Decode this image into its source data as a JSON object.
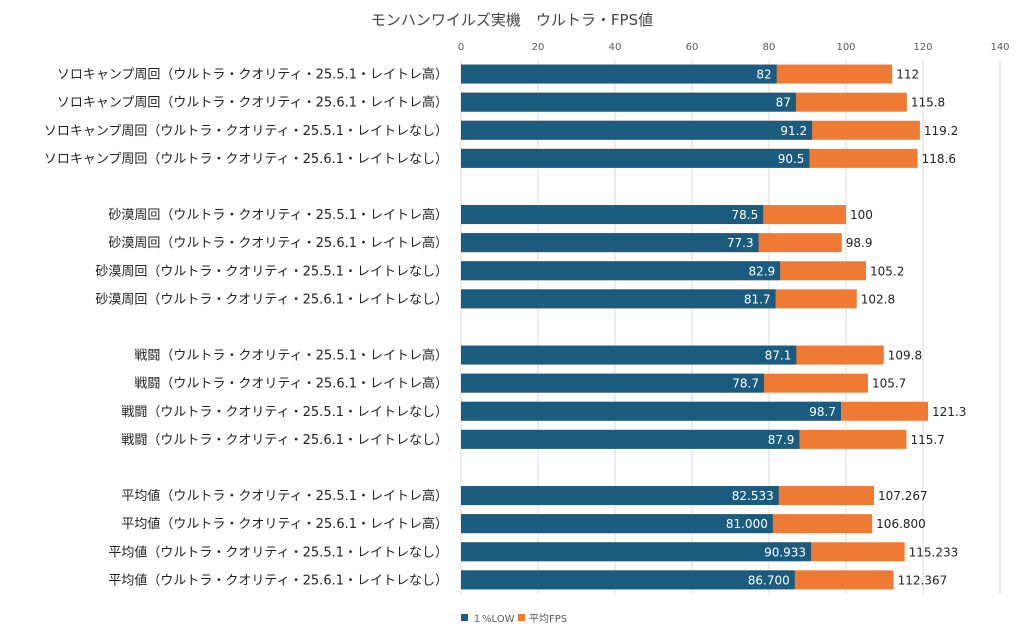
{
  "chart_data": {
    "type": "bar",
    "orientation": "horizontal",
    "stacking": "overlay",
    "title": "モンハンワイルズ実機　ウルトラ・FPS値",
    "xlim": [
      0,
      140
    ],
    "xticks": [
      "0",
      "20",
      "40",
      "60",
      "80",
      "100",
      "120",
      "140"
    ],
    "grid": true,
    "legend_position": "bottom",
    "colors": {
      "low": "#1b5c7e",
      "avg": "#ee7a34",
      "grid": "#d9d9d9"
    },
    "categories": [
      "ソロキャンプ周回（ウルトラ・クオリティ・25.5.1・レイトレ高）",
      "ソロキャンプ周回（ウルトラ・クオリティ・25.6.1・レイトレ高）",
      "ソロキャンプ周回（ウルトラ・クオリティ・25.5.1・レイトレなし）",
      "ソロキャンプ周回（ウルトラ・クオリティ・25.6.1・レイトレなし）",
      "",
      "砂漠周回（ウルトラ・クオリティ・25.5.1・レイトレ高）",
      "砂漠周回（ウルトラ・クオリティ・25.6.1・レイトレ高）",
      "砂漠周回（ウルトラ・クオリティ・25.5.1・レイトレなし）",
      "砂漠周回（ウルトラ・クオリティ・25.6.1・レイトレなし）",
      "",
      "戦闘（ウルトラ・クオリティ・25.5.1・レイトレ高）",
      "戦闘（ウルトラ・クオリティ・25.6.1・レイトレ高）",
      "戦闘（ウルトラ・クオリティ・25.5.1・レイトレなし）",
      "戦闘（ウルトラ・クオリティ・25.6.1・レイトレなし）",
      "",
      "平均値（ウルトラ・クオリティ・25.5.1・レイトレ高）",
      "平均値（ウルトラ・クオリティ・25.6.1・レイトレ高）",
      "平均値（ウルトラ・クオリティ・25.5.1・レイトレなし）",
      "平均値（ウルトラ・クオリティ・25.6.1・レイトレなし）"
    ],
    "series": [
      {
        "name": "１%LOW",
        "values": [
          82,
          87,
          91.2,
          90.5,
          null,
          78.5,
          77.3,
          82.9,
          81.7,
          null,
          87.1,
          78.7,
          98.7,
          87.9,
          null,
          82.533,
          81.0,
          90.933,
          86.7
        ],
        "labels": [
          "82",
          "87",
          "91.2",
          "90.5",
          "",
          "78.5",
          "77.3",
          "82.9",
          "81.7",
          "",
          "87.1",
          "78.7",
          "98.7",
          "87.9",
          "",
          "82.533",
          "81.000",
          "90.933",
          "86.700"
        ]
      },
      {
        "name": "平均FPS",
        "values": [
          112,
          115.8,
          119.2,
          118.6,
          null,
          100,
          98.9,
          105.2,
          102.8,
          null,
          109.8,
          105.7,
          121.3,
          115.7,
          null,
          107.267,
          106.8,
          115.233,
          112.367
        ],
        "labels": [
          "112",
          "115.8",
          "119.2",
          "118.6",
          "",
          "100",
          "98.9",
          "105.2",
          "102.8",
          "",
          "109.8",
          "105.7",
          "121.3",
          "115.7",
          "",
          "107.267",
          "106.800",
          "115.233",
          "112.367"
        ]
      }
    ]
  }
}
